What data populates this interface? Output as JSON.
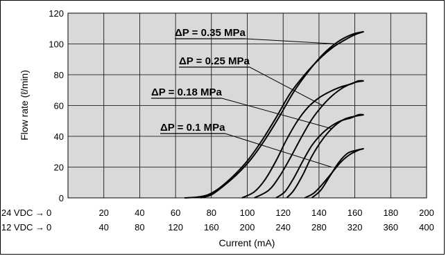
{
  "chart_data": {
    "type": "line",
    "ylabel": "Flow rate (ℓ/min)",
    "xlabel": "Current (mA)",
    "ylim": [
      0,
      120
    ],
    "yticks": [
      0,
      20,
      40,
      60,
      80,
      100,
      120
    ],
    "xlim": [
      0,
      200
    ],
    "grid": true,
    "x_rows": [
      {
        "label": "24 VDC →",
        "ticks": [
          "0",
          "20",
          "40",
          "60",
          "80",
          "100",
          "120",
          "140",
          "160",
          "180",
          "200"
        ]
      },
      {
        "label": "12 VDC →",
        "ticks": [
          "0",
          "40",
          "80",
          "120",
          "160",
          "200",
          "240",
          "280",
          "320",
          "360",
          "400"
        ]
      }
    ],
    "series": [
      {
        "name": "ΔP = 0.35 MPa",
        "up": [
          [
            65,
            0
          ],
          [
            72,
            0.5
          ],
          [
            78,
            2
          ],
          [
            84,
            6
          ],
          [
            92,
            14
          ],
          [
            100,
            24
          ],
          [
            108,
            37
          ],
          [
            116,
            52
          ],
          [
            124,
            68
          ],
          [
            132,
            80
          ],
          [
            140,
            90
          ],
          [
            148,
            98
          ],
          [
            155,
            103
          ],
          [
            160,
            106
          ],
          [
            165,
            108
          ]
        ],
        "down": [
          [
            165,
            108
          ],
          [
            158,
            106
          ],
          [
            150,
            101
          ],
          [
            142,
            93
          ],
          [
            134,
            82
          ],
          [
            126,
            69
          ],
          [
            118,
            53
          ],
          [
            110,
            38
          ],
          [
            102,
            25
          ],
          [
            94,
            15
          ],
          [
            86,
            7
          ],
          [
            80,
            2
          ],
          [
            74,
            0
          ]
        ]
      },
      {
        "name": "ΔP = 0.25 MPa",
        "up": [
          [
            97,
            0
          ],
          [
            104,
            4
          ],
          [
            110,
            12
          ],
          [
            116,
            24
          ],
          [
            122,
            38
          ],
          [
            128,
            50
          ],
          [
            134,
            59
          ],
          [
            140,
            65
          ],
          [
            146,
            69
          ],
          [
            152,
            72
          ],
          [
            158,
            74
          ],
          [
            162,
            76
          ],
          [
            165,
            76
          ]
        ],
        "down": [
          [
            165,
            76
          ],
          [
            160,
            75
          ],
          [
            154,
            72
          ],
          [
            148,
            67
          ],
          [
            142,
            60
          ],
          [
            136,
            51
          ],
          [
            130,
            39
          ],
          [
            124,
            26
          ],
          [
            118,
            14
          ],
          [
            112,
            5
          ],
          [
            104,
            0
          ]
        ]
      },
      {
        "name": "ΔP = 0.18 MPa",
        "up": [
          [
            116,
            0
          ],
          [
            121,
            4
          ],
          [
            126,
            13
          ],
          [
            131,
            24
          ],
          [
            136,
            34
          ],
          [
            141,
            41
          ],
          [
            146,
            46
          ],
          [
            152,
            50
          ],
          [
            158,
            52
          ],
          [
            162,
            54
          ],
          [
            165,
            54
          ]
        ],
        "down": [
          [
            165,
            54
          ],
          [
            160,
            53
          ],
          [
            154,
            51
          ],
          [
            148,
            46
          ],
          [
            142,
            38
          ],
          [
            136,
            27
          ],
          [
            131,
            15
          ],
          [
            126,
            5
          ],
          [
            122,
            0
          ]
        ]
      },
      {
        "name": "ΔP = 0.1 MPa",
        "up": [
          [
            132,
            0
          ],
          [
            137,
            3
          ],
          [
            142,
            9
          ],
          [
            147,
            16
          ],
          [
            152,
            23
          ],
          [
            157,
            28
          ],
          [
            162,
            31
          ],
          [
            165,
            32
          ]
        ],
        "down": [
          [
            165,
            32
          ],
          [
            161,
            31
          ],
          [
            156,
            29
          ],
          [
            151,
            23
          ],
          [
            146,
            14
          ],
          [
            141,
            5
          ],
          [
            136,
            0
          ]
        ]
      }
    ],
    "annotations": [
      {
        "text": "ΔP = 0.35 MPa",
        "series": 0,
        "target_x": 150,
        "target_y": 100
      },
      {
        "text": "ΔP = 0.25 MPa",
        "series": 1,
        "target_x": 142,
        "target_y": 60
      },
      {
        "text": "ΔP = 0.18 MPa",
        "series": 2,
        "target_x": 147,
        "target_y": 45
      },
      {
        "text": "ΔP = 0.1 MPa",
        "series": 3,
        "target_x": 147,
        "target_y": 20
      }
    ]
  }
}
